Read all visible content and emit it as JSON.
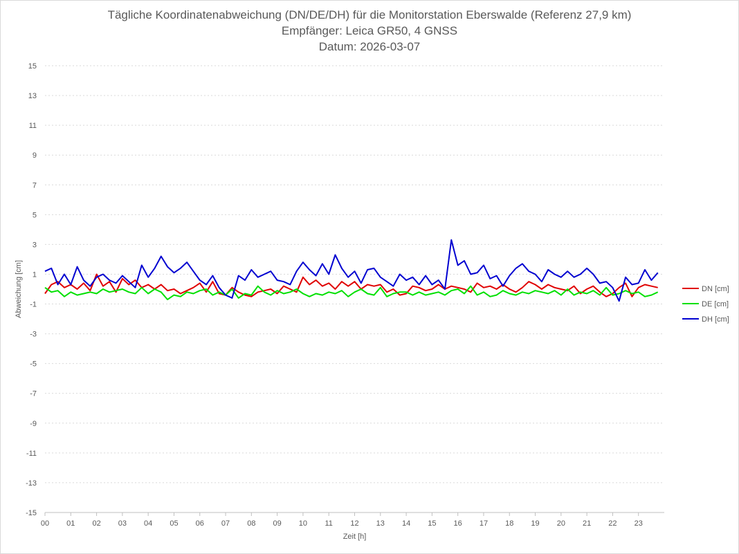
{
  "chart_data": {
    "type": "line",
    "title_lines": [
      "Tägliche Koordinatenabweichung (DN/DE/DH) für die Monitorstation Eberswalde (Referenz 27,9 km)",
      "Empfänger: Leica GR50, 4 GNSS",
      "Datum: 2026-03-07"
    ],
    "xlabel": "Zeit [h]",
    "ylabel": "Abweichung [cm]",
    "xlim": [
      0,
      24
    ],
    "ylim": [
      -15,
      15
    ],
    "x_ticks": [
      "00",
      "01",
      "02",
      "03",
      "04",
      "05",
      "06",
      "07",
      "08",
      "09",
      "10",
      "11",
      "12",
      "13",
      "14",
      "15",
      "16",
      "17",
      "18",
      "19",
      "20",
      "21",
      "22",
      "23"
    ],
    "y_ticks": [
      15,
      13,
      11,
      9,
      7,
      5,
      3,
      1,
      -1,
      -3,
      -5,
      -7,
      -9,
      -11,
      -13,
      -15
    ],
    "grid": true,
    "legend_position": "right",
    "x": [
      0.0,
      0.25,
      0.5,
      0.75,
      1.0,
      1.25,
      1.5,
      1.75,
      2.0,
      2.25,
      2.5,
      2.75,
      3.0,
      3.25,
      3.5,
      3.75,
      4.0,
      4.25,
      4.5,
      4.75,
      5.0,
      5.25,
      5.5,
      5.75,
      6.0,
      6.25,
      6.5,
      6.75,
      7.0,
      7.25,
      7.5,
      7.75,
      8.0,
      8.25,
      8.5,
      8.75,
      9.0,
      9.25,
      9.5,
      9.75,
      10.0,
      10.25,
      10.5,
      10.75,
      11.0,
      11.25,
      11.5,
      11.75,
      12.0,
      12.25,
      12.5,
      12.75,
      13.0,
      13.25,
      13.5,
      13.75,
      14.0,
      14.25,
      14.5,
      14.75,
      15.0,
      15.25,
      15.5,
      15.75,
      16.0,
      16.25,
      16.5,
      16.75,
      17.0,
      17.25,
      17.5,
      17.75,
      18.0,
      18.25,
      18.5,
      18.75,
      19.0,
      19.25,
      19.5,
      19.75,
      20.0,
      20.25,
      20.5,
      20.75,
      21.0,
      21.25,
      21.5,
      21.75,
      22.0,
      22.25,
      22.5,
      22.75,
      23.0,
      23.25,
      23.5,
      23.75
    ],
    "series": [
      {
        "name": "DN [cm]",
        "color": "#e00000",
        "values": [
          -0.3,
          0.3,
          0.5,
          0.1,
          0.3,
          0.0,
          0.4,
          -0.1,
          1.0,
          0.2,
          0.5,
          -0.2,
          0.7,
          0.3,
          0.6,
          0.1,
          0.3,
          0.0,
          0.3,
          -0.1,
          0.0,
          -0.3,
          -0.1,
          0.1,
          0.4,
          -0.2,
          0.5,
          -0.3,
          -0.4,
          0.1,
          -0.2,
          -0.4,
          -0.5,
          -0.2,
          -0.1,
          0.0,
          -0.3,
          0.2,
          0.0,
          -0.2,
          0.8,
          0.3,
          0.6,
          0.2,
          0.4,
          0.0,
          0.5,
          0.2,
          0.5,
          0.0,
          0.3,
          0.2,
          0.3,
          -0.2,
          0.0,
          -0.4,
          -0.3,
          0.2,
          0.1,
          -0.1,
          0.0,
          0.3,
          0.0,
          0.2,
          0.1,
          0.0,
          -0.2,
          0.4,
          0.1,
          0.2,
          0.0,
          0.3,
          0.0,
          -0.2,
          0.1,
          0.5,
          0.3,
          0.0,
          0.3,
          0.1,
          0.0,
          -0.1,
          0.2,
          -0.3,
          0.0,
          0.2,
          -0.2,
          -0.5,
          -0.3,
          0.1,
          0.4,
          -0.5,
          0.1,
          0.3,
          0.2,
          0.1
        ]
      },
      {
        "name": "DE [cm]",
        "color": "#00e000",
        "values": [
          0.1,
          -0.2,
          -0.1,
          -0.5,
          -0.2,
          -0.4,
          -0.3,
          -0.2,
          -0.3,
          0.0,
          -0.2,
          -0.1,
          0.0,
          -0.2,
          -0.3,
          0.1,
          -0.3,
          0.0,
          -0.2,
          -0.7,
          -0.4,
          -0.5,
          -0.2,
          -0.3,
          -0.1,
          0.0,
          -0.4,
          -0.2,
          -0.4,
          0.0,
          -0.6,
          -0.3,
          -0.4,
          0.2,
          -0.2,
          -0.4,
          -0.1,
          -0.3,
          -0.2,
          0.0,
          -0.3,
          -0.5,
          -0.3,
          -0.4,
          -0.2,
          -0.3,
          -0.1,
          -0.5,
          -0.2,
          0.0,
          -0.3,
          -0.4,
          0.1,
          -0.5,
          -0.3,
          -0.2,
          -0.2,
          -0.4,
          -0.2,
          -0.4,
          -0.3,
          -0.2,
          -0.4,
          -0.1,
          0.0,
          -0.3,
          0.2,
          -0.4,
          -0.2,
          -0.5,
          -0.4,
          -0.1,
          -0.3,
          -0.4,
          -0.2,
          -0.3,
          -0.1,
          -0.2,
          -0.3,
          -0.1,
          -0.4,
          0.0,
          -0.4,
          -0.2,
          -0.3,
          -0.1,
          -0.4,
          0.1,
          -0.4,
          -0.3,
          -0.1,
          -0.3,
          -0.2,
          -0.5,
          -0.4,
          -0.2
        ]
      },
      {
        "name": "DH [cm]",
        "color": "#0000d0",
        "values": [
          1.2,
          1.4,
          0.3,
          1.0,
          0.3,
          1.5,
          0.6,
          0.2,
          0.8,
          1.0,
          0.6,
          0.4,
          0.9,
          0.5,
          0.1,
          1.6,
          0.8,
          1.4,
          2.2,
          1.5,
          1.1,
          1.4,
          1.8,
          1.2,
          0.6,
          0.3,
          0.9,
          0.1,
          -0.4,
          -0.6,
          0.9,
          0.6,
          1.3,
          0.8,
          1.0,
          1.2,
          0.6,
          0.5,
          0.3,
          1.2,
          1.8,
          1.3,
          0.9,
          1.7,
          1.0,
          2.3,
          1.4,
          0.8,
          1.2,
          0.4,
          1.3,
          1.4,
          0.8,
          0.5,
          0.2,
          1.0,
          0.6,
          0.8,
          0.3,
          0.9,
          0.3,
          0.6,
          0.0,
          3.3,
          1.6,
          1.9,
          1.0,
          1.1,
          1.6,
          0.7,
          0.9,
          0.2,
          0.9,
          1.4,
          1.7,
          1.2,
          1.0,
          0.5,
          1.3,
          1.0,
          0.8,
          1.2,
          0.8,
          1.0,
          1.4,
          1.0,
          0.4,
          0.5,
          0.1,
          -0.8,
          0.8,
          0.3,
          0.4,
          1.3,
          0.6,
          1.1
        ]
      }
    ]
  }
}
